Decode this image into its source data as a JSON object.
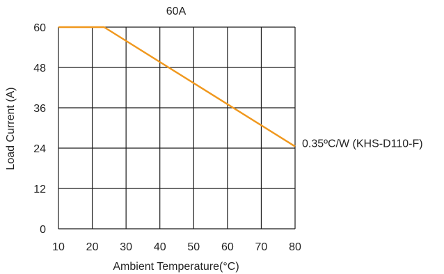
{
  "chart_data": {
    "type": "line",
    "title": "60A",
    "xlabel": "Ambient Temperature(°C)",
    "ylabel": "Load Current (A)",
    "xlim": [
      10,
      80
    ],
    "ylim": [
      0,
      60
    ],
    "x_ticks": [
      "10",
      "20",
      "30",
      "40",
      "50",
      "60",
      "70",
      "80"
    ],
    "y_ticks": [
      "0",
      "12",
      "24",
      "36",
      "48",
      "60"
    ],
    "grid": true,
    "series": [
      {
        "name": "0.35ºC/W (KHS-D110-F)",
        "color": "#f0981e",
        "x": [
          10,
          23.5,
          80
        ],
        "y": [
          60,
          60,
          24.5
        ]
      }
    ]
  }
}
